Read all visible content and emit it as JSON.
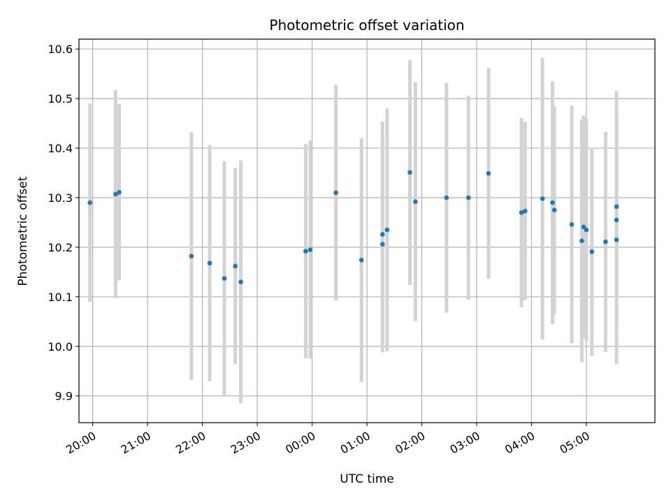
{
  "chart_data": {
    "type": "scatter",
    "title": "Photometric offset variation",
    "xlabel": "UTC time",
    "ylabel": "Photometric offset",
    "x_unit": "UTC clock time (times past 00:00 are on the following day)",
    "xlim": [
      "19:45",
      "06:15"
    ],
    "ylim": [
      9.846,
      10.62
    ],
    "xticks": [
      "20:00",
      "21:00",
      "22:00",
      "23:00",
      "00:00",
      "01:00",
      "02:00",
      "03:00",
      "04:00",
      "05:00"
    ],
    "yticks": [
      "9.9",
      "10.0",
      "10.1",
      "10.2",
      "10.3",
      "10.4",
      "10.5",
      "10.6"
    ],
    "grid": true,
    "series": [
      {
        "marker_color": "#1f77b4",
        "errorbar_color": "#d3d3d3",
        "points": [
          {
            "x": "19:57",
            "y": 10.29,
            "err": 0.2
          },
          {
            "x": "20:25",
            "y": 10.307,
            "err": 0.21
          },
          {
            "x": "20:29",
            "y": 10.311,
            "err": 0.178
          },
          {
            "x": "21:48",
            "y": 10.182,
            "err": 0.25
          },
          {
            "x": "22:08",
            "y": 10.168,
            "err": 0.238
          },
          {
            "x": "22:24",
            "y": 10.137,
            "err": 0.237
          },
          {
            "x": "22:36",
            "y": 10.162,
            "err": 0.198
          },
          {
            "x": "22:42",
            "y": 10.13,
            "err": 0.245
          },
          {
            "x": "23:53",
            "y": 10.192,
            "err": 0.216
          },
          {
            "x": "23:58",
            "y": 10.195,
            "err": 0.22
          },
          {
            "x": "00:26",
            "y": 10.31,
            "err": 0.218
          },
          {
            "x": "00:54",
            "y": 10.174,
            "err": 0.246
          },
          {
            "x": "01:17",
            "y": 10.226,
            "err": 0.228
          },
          {
            "x": "01:17",
            "y": 10.206,
            "err": 0.218
          },
          {
            "x": "01:22",
            "y": 10.235,
            "err": 0.245
          },
          {
            "x": "01:47",
            "y": 10.351,
            "err": 0.227
          },
          {
            "x": "01:53",
            "y": 10.292,
            "err": 0.241
          },
          {
            "x": "02:27",
            "y": 10.3,
            "err": 0.232
          },
          {
            "x": "02:51",
            "y": 10.3,
            "err": 0.206
          },
          {
            "x": "03:13",
            "y": 10.349,
            "err": 0.213
          },
          {
            "x": "03:49",
            "y": 10.27,
            "err": 0.191
          },
          {
            "x": "03:53",
            "y": 10.273,
            "err": 0.18
          },
          {
            "x": "04:12",
            "y": 10.298,
            "err": 0.284
          },
          {
            "x": "04:23",
            "y": 10.29,
            "err": 0.245
          },
          {
            "x": "04:25",
            "y": 10.275,
            "err": 0.21
          },
          {
            "x": "04:44",
            "y": 10.246,
            "err": 0.24
          },
          {
            "x": "04:55",
            "y": 10.213,
            "err": 0.245
          },
          {
            "x": "04:57",
            "y": 10.241,
            "err": 0.225
          },
          {
            "x": "05:00",
            "y": 10.235,
            "err": 0.225
          },
          {
            "x": "05:06",
            "y": 10.191,
            "err": 0.21
          },
          {
            "x": "05:21",
            "y": 10.211,
            "err": 0.222
          },
          {
            "x": "05:33",
            "y": 10.282,
            "err": 0.233
          },
          {
            "x": "05:33",
            "y": 10.255,
            "err": 0.213
          },
          {
            "x": "05:33",
            "y": 10.215,
            "err": 0.251
          }
        ]
      }
    ]
  }
}
